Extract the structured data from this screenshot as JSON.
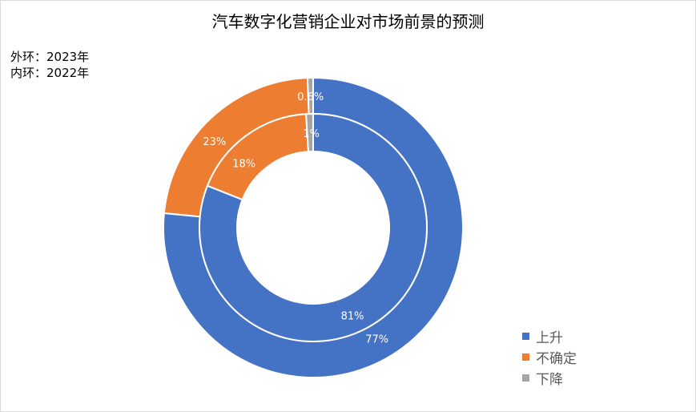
{
  "chart_data": {
    "type": "donut",
    "title": "汽车数字化营销企业对市场前景的预测",
    "notes": [
      "外环：2023年",
      "内环：2022年"
    ],
    "categories": [
      "上升",
      "不确定",
      "下降"
    ],
    "colors": [
      "#4472C4",
      "#ED7D31",
      "#A5A5A5"
    ],
    "series": [
      {
        "ring": "outer",
        "values": [
          77,
          23,
          0.6
        ],
        "labels": [
          "77%",
          "23%",
          "0.6%"
        ]
      },
      {
        "ring": "inner",
        "values": [
          81,
          18,
          1
        ],
        "labels": [
          "81%",
          "18%",
          "1%"
        ]
      }
    ],
    "legend_position": "bottom-right"
  }
}
